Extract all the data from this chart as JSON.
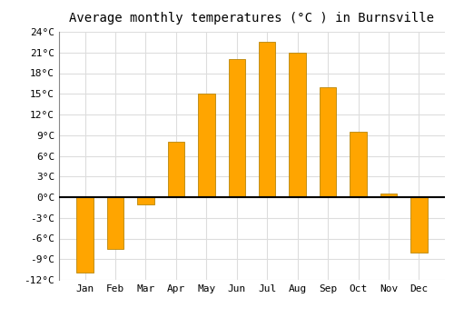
{
  "title": "Average monthly temperatures (°C ) in Burnsville",
  "months": [
    "Jan",
    "Feb",
    "Mar",
    "Apr",
    "May",
    "Jun",
    "Jul",
    "Aug",
    "Sep",
    "Oct",
    "Nov",
    "Dec"
  ],
  "values": [
    -11,
    -7.5,
    -1,
    8,
    15,
    20,
    22.5,
    21,
    16,
    9.5,
    0.5,
    -8
  ],
  "bar_color_top": "#FFA500",
  "bar_color_bottom": "#FFB800",
  "bar_edge_color": "#B8860B",
  "ylim": [
    -12,
    24
  ],
  "yticks": [
    -12,
    -9,
    -6,
    -3,
    0,
    3,
    6,
    9,
    12,
    15,
    18,
    21,
    24
  ],
  "figure_bg": "#ffffff",
  "plot_bg": "#ffffff",
  "grid_color": "#dddddd",
  "title_fontsize": 10,
  "tick_fontsize": 8,
  "zero_line_color": "#000000",
  "bar_width": 0.55
}
